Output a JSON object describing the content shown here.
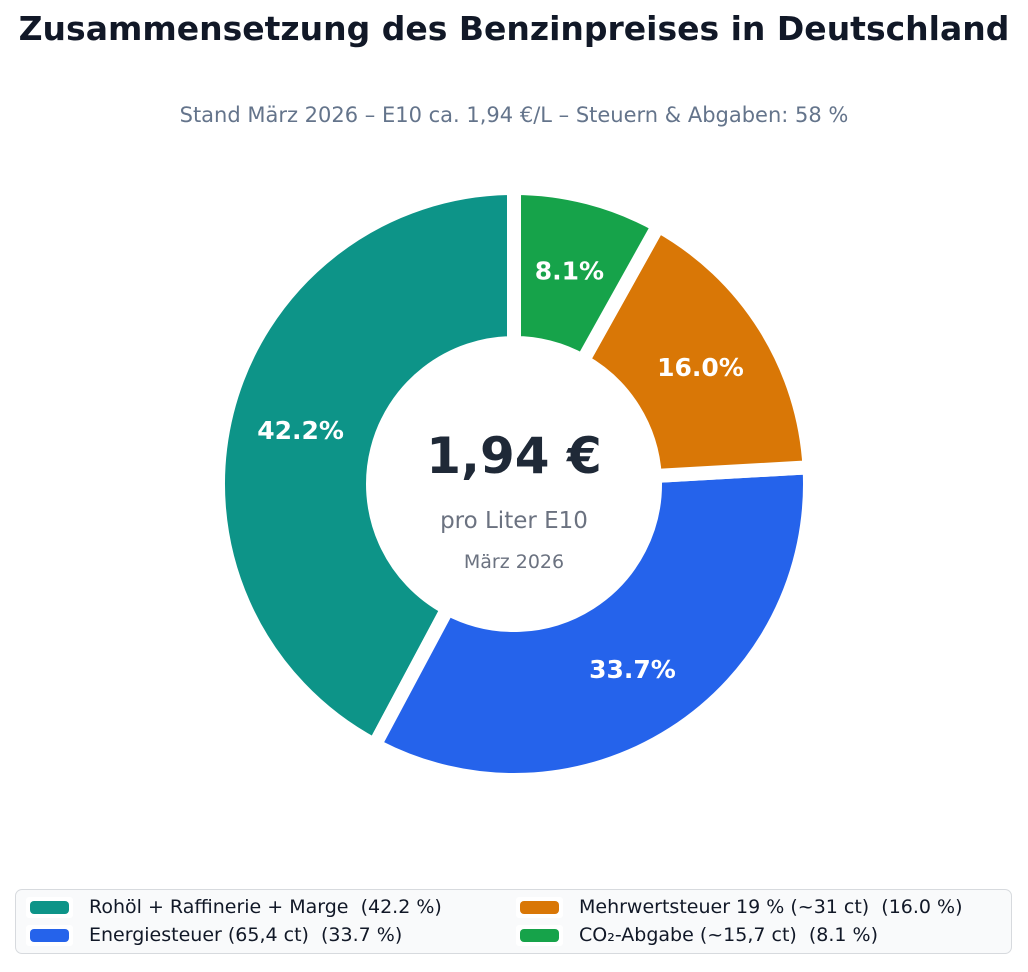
{
  "chart_data": {
    "type": "pie",
    "variant": "donut",
    "title": "Zusammensetzung des Benzinpreises in Deutschland",
    "subtitle": "Stand März 2026 – E10 ca. 1,94 €/L – Steuern & Abgaben: 58 %",
    "start_angle": 90,
    "direction": "counterclockwise",
    "slice_label_format": "percent_1dp",
    "legend": {
      "position": "bottom",
      "columns": 2
    },
    "center_label": {
      "price": "1,94 €",
      "unit": "pro Liter E10",
      "date": "März 2026"
    },
    "series": [
      {
        "name": "Rohöl + Raffinerie + Marge",
        "value": 42.2,
        "color": "#0d9488",
        "legend_label": "Rohöl + Raffinerie + Marge  (42.2 %)"
      },
      {
        "name": "Energiesteuer (65,4 ct)",
        "value": 33.7,
        "color": "#2563eb",
        "legend_label": "Energiesteuer (65,4 ct)  (33.7 %)"
      },
      {
        "name": "Mehrwertsteuer 19 % (~31 ct)",
        "value": 16.0,
        "color": "#d97706",
        "legend_label": "Mehrwertsteuer 19 % (~31 ct)  (16.0 %)"
      },
      {
        "name": "CO₂-Abgabe (~15,7 ct)",
        "value": 8.1,
        "color": "#16a34a",
        "legend_label": "CO₂-Abgabe (~15,7 ct)  (8.1 %)"
      }
    ]
  }
}
